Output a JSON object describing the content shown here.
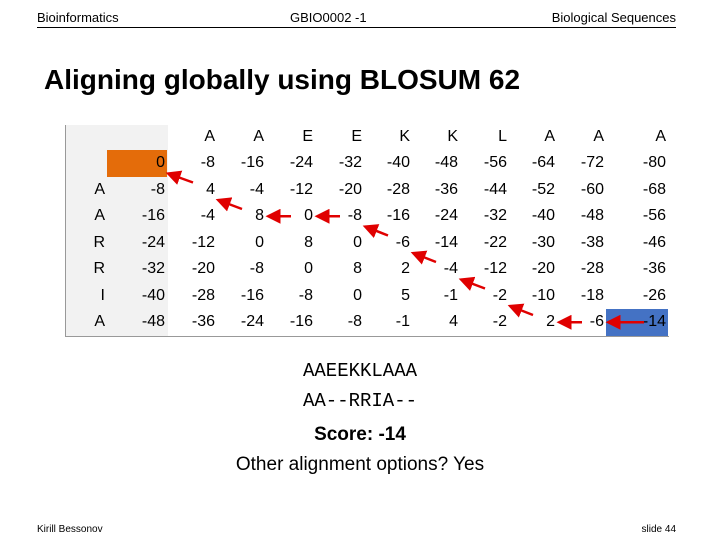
{
  "header": {
    "left": "Bioinformatics",
    "center": "GBIO0002 -1",
    "right": "Biological Sequences"
  },
  "title": "Aligning globally using BLOSUM 62",
  "table": {
    "columns": [
      "A",
      "A",
      "E",
      "E",
      "K",
      "K",
      "L",
      "A",
      "A",
      "A"
    ],
    "first_row": [
      0,
      -8,
      -16,
      -24,
      -32,
      -40,
      -48,
      -56,
      -64,
      -72,
      -80
    ],
    "rows": [
      {
        "label": "A",
        "cells": [
          -8,
          4,
          -4,
          -12,
          -20,
          -28,
          -36,
          -44,
          -52,
          -60,
          -68
        ]
      },
      {
        "label": "A",
        "cells": [
          -16,
          -4,
          8,
          0,
          -8,
          -16,
          -24,
          -32,
          -40,
          -48,
          -56
        ]
      },
      {
        "label": "R",
        "cells": [
          -24,
          -12,
          0,
          8,
          0,
          -6,
          -14,
          -22,
          -30,
          -38,
          -46
        ]
      },
      {
        "label": "R",
        "cells": [
          -32,
          -20,
          -8,
          0,
          8,
          2,
          -4,
          -12,
          -20,
          -28,
          -36
        ]
      },
      {
        "label": "I",
        "cells": [
          -40,
          -28,
          -16,
          -8,
          0,
          5,
          -1,
          -2,
          -10,
          -18,
          -26
        ]
      },
      {
        "label": "A",
        "cells": [
          -48,
          -36,
          -24,
          -16,
          -8,
          -1,
          4,
          -2,
          2,
          -6,
          -14
        ]
      }
    ]
  },
  "alignment": {
    "top": "AAEEKKLAAA",
    "bottom": "AA--RRIA--",
    "score": "Score: -14",
    "question": "Other alignment options?  Yes"
  },
  "footer": {
    "author": "Kirill Bessonov",
    "slide": "slide 44"
  }
}
